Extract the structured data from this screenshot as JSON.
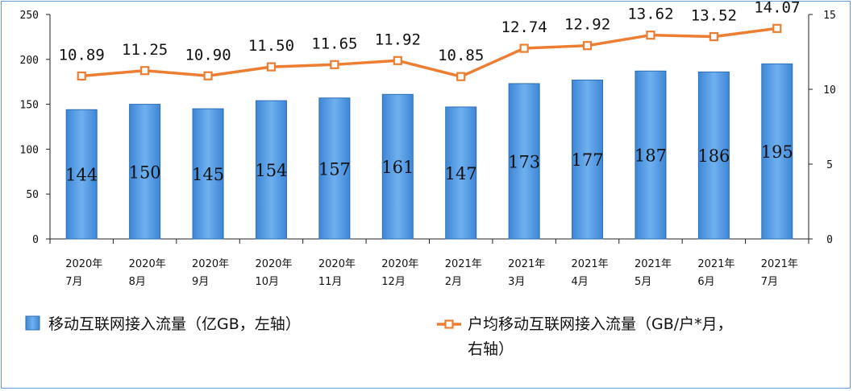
{
  "chart_data": {
    "type": "bar",
    "categories": [
      [
        "2020年",
        "7月"
      ],
      [
        "2020年",
        "8月"
      ],
      [
        "2020年",
        "9月"
      ],
      [
        "2020年",
        "10月"
      ],
      [
        "2020年",
        "11月"
      ],
      [
        "2020年",
        "12月"
      ],
      [
        "2021年",
        "2月"
      ],
      [
        "2021年",
        "3月"
      ],
      [
        "2021年",
        "4月"
      ],
      [
        "2021年",
        "5月"
      ],
      [
        "2021年",
        "6月"
      ],
      [
        "2021年",
        "7月"
      ]
    ],
    "series": [
      {
        "name": "移动互联网接入流量（亿GB，左轴）",
        "type": "bar",
        "axis": "left",
        "color": "#4a90d9",
        "values": [
          144,
          150,
          145,
          154,
          157,
          161,
          147,
          173,
          177,
          187,
          186,
          195
        ],
        "labels": [
          "144",
          "150",
          "145",
          "154",
          "157",
          "161",
          "147",
          "173",
          "177",
          "187",
          "186",
          "195"
        ]
      },
      {
        "name": "户均移动互联网接入流量（GB/户*月，右轴）",
        "name_lines": [
          "户均移动互联网接入流量（GB/户*月，",
          "右轴）"
        ],
        "type": "line",
        "axis": "right",
        "color": "#ed7d31",
        "values": [
          10.89,
          11.25,
          10.9,
          11.5,
          11.65,
          11.92,
          10.85,
          12.74,
          12.92,
          13.62,
          13.52,
          14.07
        ],
        "labels": [
          "10.89",
          "11.25",
          "10.90",
          "11.50",
          "11.65",
          "11.92",
          "10.85",
          "12.74",
          "12.92",
          "13.62",
          "13.52",
          "14.07"
        ]
      }
    ],
    "y_left": {
      "min": 0,
      "max": 250,
      "ticks": [
        "0",
        "50",
        "100",
        "150",
        "200",
        "250"
      ]
    },
    "y_right": {
      "min": 0,
      "max": 15,
      "ticks": [
        "0",
        "5",
        "10",
        "15"
      ]
    },
    "legend_position": "bottom",
    "grid": false
  }
}
